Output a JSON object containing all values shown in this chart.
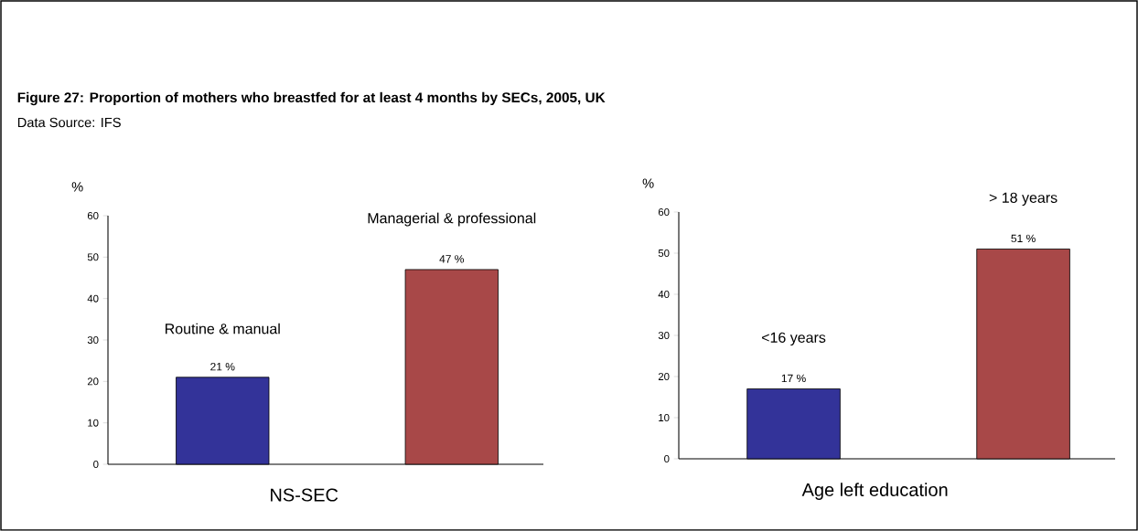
{
  "chart_data": [
    {
      "type": "bar",
      "title": "Figure 27: Proportion of mothers who breastfed for at least 4 months by SECs, 2005, UK",
      "subtitle": "Data Source: IFS",
      "ylabel": "%",
      "xlabel": "NS-SEC",
      "categories": [
        "Routine & manual",
        "Managerial & professional"
      ],
      "values": [
        21,
        47
      ],
      "value_labels": [
        "21 %",
        "47 %"
      ],
      "colors": [
        "#333399",
        "#a84848"
      ],
      "ylim": [
        0,
        60
      ],
      "yticks": [
        0,
        10,
        20,
        30,
        40,
        50,
        60
      ]
    },
    {
      "type": "bar",
      "ylabel": "%",
      "xlabel": "Age left education",
      "categories": [
        "<16 years",
        "> 18 years"
      ],
      "values": [
        17,
        51
      ],
      "value_labels": [
        "17 %",
        "51 %"
      ],
      "colors": [
        "#333399",
        "#a84848"
      ],
      "ylim": [
        0,
        60
      ],
      "yticks": [
        0,
        10,
        20,
        30,
        40,
        50,
        60
      ]
    }
  ]
}
